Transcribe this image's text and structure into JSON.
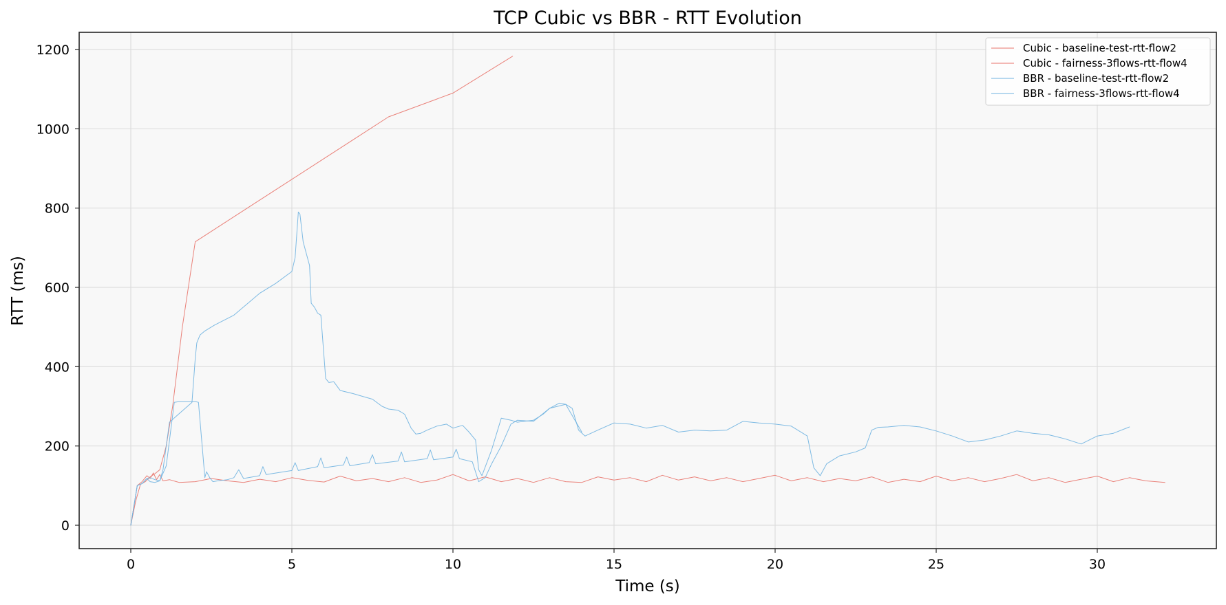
{
  "chart_data": {
    "type": "line",
    "title": "TCP Cubic vs BBR - RTT Evolution",
    "xlabel": "Time (s)",
    "ylabel": "RTT (ms)",
    "xlim": [
      -1.6,
      33.8
    ],
    "ylim": [
      -60,
      1245
    ],
    "xticks": [
      0,
      5,
      10,
      15,
      20,
      25,
      30
    ],
    "yticks": [
      0,
      200,
      400,
      600,
      800,
      1000,
      1200
    ],
    "grid": true,
    "legend_position": "upper right",
    "colors": {
      "cubic": "#e8736a",
      "bbr": "#6fb3e0"
    },
    "series": [
      {
        "name": "Cubic - baseline-test-rtt-flow2",
        "color": "#e8736a",
        "x": [
          0,
          0.15,
          0.3,
          0.45,
          0.6,
          0.75,
          0.9,
          1.1,
          1.3,
          1.6,
          2.0,
          4.0,
          6.0,
          8.0,
          10.0,
          11.85
        ],
        "y": [
          0,
          60,
          103,
          110,
          122,
          130,
          140,
          200,
          300,
          500,
          715,
          820,
          925,
          1030,
          1090,
          1183
        ]
      },
      {
        "name": "Cubic - fairness-3flows-rtt-flow4",
        "color": "#e8736a",
        "x": [
          0,
          0.2,
          0.35,
          0.5,
          0.6,
          0.7,
          0.8,
          0.9,
          1.0,
          1.2,
          1.5,
          2.0,
          2.5,
          3.0,
          3.5,
          4.0,
          4.5,
          5.0,
          5.5,
          6.0,
          6.5,
          7.0,
          7.5,
          8.0,
          8.5,
          9.0,
          9.5,
          10.0,
          10.5,
          11.0,
          11.5,
          12.0,
          12.5,
          13.0,
          13.5,
          14.0,
          14.5,
          15.0,
          15.5,
          16.0,
          16.5,
          17.0,
          17.5,
          18.0,
          18.5,
          19.0,
          19.5,
          20.0,
          20.5,
          21.0,
          21.5,
          22.0,
          22.5,
          23.0,
          23.5,
          24.0,
          24.5,
          25.0,
          25.5,
          26.0,
          26.5,
          27.0,
          27.5,
          28.0,
          28.5,
          29.0,
          29.5,
          30.0,
          30.5,
          31.0,
          31.5,
          32.1
        ],
        "y": [
          0,
          100,
          110,
          125,
          118,
          132,
          115,
          128,
          112,
          115,
          108,
          110,
          118,
          112,
          108,
          116,
          110,
          120,
          113,
          109,
          124,
          112,
          118,
          110,
          120,
          108,
          114,
          128,
          112,
          122,
          110,
          118,
          108,
          120,
          110,
          108,
          122,
          114,
          120,
          110,
          126,
          114,
          122,
          112,
          120,
          110,
          118,
          126,
          112,
          120,
          110,
          118,
          112,
          122,
          108,
          116,
          110,
          124,
          112,
          120,
          110,
          118,
          128,
          112,
          120,
          108,
          116,
          124,
          110,
          120,
          112,
          108
        ]
      },
      {
        "name": "BBR - baseline-test-rtt-flow2",
        "color": "#6fb3e0",
        "x": [
          0,
          0.2,
          0.35,
          0.5,
          0.6,
          0.75,
          0.9,
          1.0,
          1.2,
          1.9,
          2.0,
          2.05,
          2.15,
          2.3,
          2.6,
          3.2,
          4.0,
          4.5,
          5.0,
          5.1,
          5.2,
          5.25,
          5.35,
          5.55,
          5.6,
          5.7,
          5.8,
          5.9,
          6.05,
          6.15,
          6.3,
          6.5,
          6.6,
          6.9,
          7.2,
          7.5,
          7.8,
          8.0,
          8.3,
          8.5,
          8.7,
          8.85,
          9.0,
          9.2,
          9.5,
          9.8,
          10.0,
          10.3,
          10.5,
          10.7,
          10.8,
          10.9,
          11.2,
          11.5,
          11.8,
          12.0,
          12.2,
          12.5,
          12.8,
          13.0,
          13.3,
          13.5,
          13.7,
          13.9,
          14.1,
          14.5,
          15.0,
          15.5,
          16.0,
          16.5,
          17.0,
          17.5,
          18.0,
          18.5,
          19.0,
          19.5,
          20.0,
          20.5,
          21.0,
          21.2,
          21.4,
          21.6,
          21.8,
          22.0,
          22.5,
          22.8,
          23.0,
          23.2,
          23.5,
          24.0,
          24.5,
          25.0,
          25.5,
          26.0,
          26.5,
          27.0,
          27.5,
          28.0,
          28.5,
          29.0,
          29.5,
          30.0,
          30.5,
          31.0
        ],
        "y": [
          0,
          100,
          105,
          118,
          120,
          115,
          112,
          140,
          260,
          310,
          420,
          460,
          480,
          490,
          505,
          530,
          585,
          610,
          640,
          675,
          790,
          785,
          715,
          655,
          560,
          550,
          535,
          530,
          370,
          360,
          362,
          340,
          338,
          332,
          325,
          318,
          300,
          293,
          290,
          280,
          245,
          230,
          232,
          240,
          250,
          255,
          245,
          252,
          235,
          215,
          140,
          125,
          190,
          270,
          265,
          260,
          262,
          265,
          280,
          295,
          308,
          305,
          295,
          240,
          225,
          240,
          258,
          255,
          245,
          252,
          235,
          240,
          238,
          240,
          262,
          258,
          255,
          250,
          225,
          145,
          125,
          155,
          165,
          175,
          185,
          195,
          240,
          247,
          248,
          252,
          248,
          238,
          225,
          210,
          215,
          225,
          238,
          232,
          228,
          218,
          205,
          225,
          232,
          248
        ]
      },
      {
        "name": "BBR - fairness-3flows-rtt-flow4",
        "color": "#6fb3e0",
        "x": [
          0,
          0.2,
          0.35,
          0.5,
          0.6,
          0.75,
          0.9,
          1.1,
          1.35,
          1.5,
          2.0,
          2.1,
          2.3,
          2.35,
          2.45,
          2.55,
          2.7,
          3.0,
          3.2,
          3.35,
          3.5,
          4.0,
          4.1,
          4.2,
          5.0,
          5.1,
          5.2,
          5.8,
          5.9,
          6.0,
          6.6,
          6.7,
          6.8,
          7.4,
          7.5,
          7.6,
          8.3,
          8.4,
          8.5,
          9.2,
          9.3,
          9.4,
          10.0,
          10.1,
          10.2,
          10.6,
          10.8,
          11.0,
          11.2,
          11.5,
          11.8,
          12.0,
          12.5,
          13.0,
          13.5,
          14.0
        ],
        "y": [
          0,
          100,
          105,
          118,
          110,
          108,
          112,
          150,
          310,
          312,
          312,
          310,
          120,
          135,
          120,
          110,
          112,
          115,
          120,
          140,
          118,
          125,
          148,
          128,
          138,
          158,
          138,
          148,
          170,
          145,
          152,
          172,
          150,
          158,
          178,
          155,
          162,
          185,
          160,
          168,
          190,
          165,
          172,
          192,
          168,
          160,
          110,
          120,
          155,
          200,
          255,
          265,
          262,
          295,
          305,
          235
        ]
      }
    ]
  },
  "legend": {
    "items": [
      {
        "label": "Cubic - baseline-test-rtt-flow2",
        "color": "#e8736a"
      },
      {
        "label": "Cubic - fairness-3flows-rtt-flow4",
        "color": "#e8736a"
      },
      {
        "label": "BBR - baseline-test-rtt-flow2",
        "color": "#6fb3e0"
      },
      {
        "label": "BBR - fairness-3flows-rtt-flow4",
        "color": "#6fb3e0"
      }
    ]
  },
  "axes": {
    "xtick_labels": [
      "0",
      "5",
      "10",
      "15",
      "20",
      "25",
      "30"
    ],
    "ytick_labels": [
      "0",
      "200",
      "400",
      "600",
      "800",
      "1000",
      "1200"
    ]
  }
}
